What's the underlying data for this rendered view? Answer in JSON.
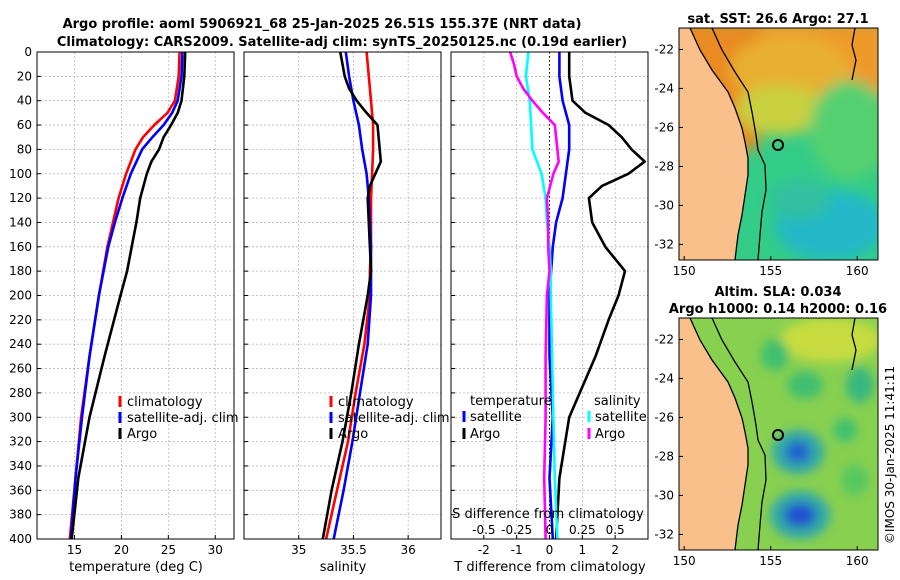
{
  "figure": {
    "title_line1": "Argo profile: aoml 5906921_68 25-Jan-2025 26.51S 155.37E (NRT data)",
    "title_line2": "Climatology: CARS2009. Satellite-adj clim: synTS_20250125.nc (0.19d earlier)",
    "credit": "©IMOS 30-Jan-2025 11:41:11"
  },
  "colors": {
    "climatology": "#ff0000",
    "satellite": "#0000ff",
    "argo": "#000000",
    "sal_satellite": "#00ffff",
    "sal_argo": "#ff00ff",
    "land": "#f9c08b",
    "coast": "#000000",
    "grid": "#b8b8b8"
  },
  "chart_data": [
    {
      "type": "line",
      "panel": "temperature",
      "xlabel": "temperature (deg C)",
      "ylabel": "",
      "xlim": [
        11,
        32
      ],
      "ylim": [
        0,
        400
      ],
      "y_reversed": true,
      "xticks": [
        15,
        20,
        25,
        30
      ],
      "yticks": [
        0,
        20,
        40,
        60,
        80,
        100,
        120,
        140,
        160,
        180,
        200,
        220,
        240,
        260,
        280,
        300,
        320,
        340,
        360,
        380,
        400
      ],
      "legend": [
        "climatology",
        "satellite-adj. clim",
        "Argo"
      ],
      "legend_location": "lower-right",
      "series": [
        {
          "name": "climatology",
          "color": "#ff0000",
          "depth": [
            0,
            20,
            40,
            50,
            60,
            70,
            80,
            100,
            120,
            140,
            160,
            200,
            250,
            300,
            350,
            400
          ],
          "values": [
            26.2,
            26.1,
            25.7,
            24.9,
            23.5,
            22.3,
            21.5,
            20.5,
            19.7,
            19.1,
            18.5,
            17.6,
            16.6,
            15.7,
            15.1,
            14.5
          ]
        },
        {
          "name": "satellite-adj. clim",
          "color": "#0000ff",
          "depth": [
            0,
            20,
            40,
            50,
            60,
            70,
            80,
            100,
            120,
            140,
            160,
            200,
            250,
            300,
            350,
            400
          ],
          "values": [
            26.5,
            26.4,
            26.0,
            25.4,
            24.5,
            23.3,
            22.2,
            21.0,
            20.1,
            19.3,
            18.6,
            17.6,
            16.6,
            15.8,
            15.1,
            14.6
          ]
        },
        {
          "name": "Argo",
          "color": "#000000",
          "depth": [
            0,
            20,
            40,
            50,
            60,
            70,
            80,
            90,
            100,
            120,
            140,
            160,
            180,
            200,
            250,
            300,
            350,
            400
          ],
          "values": [
            26.8,
            26.7,
            26.4,
            26.0,
            25.3,
            24.5,
            24.0,
            23.2,
            22.7,
            22.0,
            21.6,
            21.1,
            20.6,
            19.9,
            18.2,
            16.6,
            15.4,
            14.7
          ]
        }
      ]
    },
    {
      "type": "line",
      "panel": "salinity",
      "xlabel": "salinity",
      "ylabel": "",
      "xlim": [
        34.5,
        36.3
      ],
      "ylim": [
        0,
        400
      ],
      "y_reversed": true,
      "xticks": [
        35,
        35.5,
        36
      ],
      "legend": [
        "climatology",
        "satellite-adj. clim",
        "Argo"
      ],
      "legend_location": "lower-right",
      "series": [
        {
          "name": "climatology",
          "color": "#ff0000",
          "depth": [
            0,
            20,
            40,
            60,
            80,
            100,
            120,
            140,
            160,
            180,
            200,
            240,
            280,
            320,
            360,
            400
          ],
          "values": [
            35.62,
            35.64,
            35.66,
            35.68,
            35.68,
            35.67,
            35.66,
            35.66,
            35.66,
            35.65,
            35.65,
            35.6,
            35.52,
            35.45,
            35.35,
            35.25
          ]
        },
        {
          "name": "satellite-adj. clim",
          "color": "#0000ff",
          "depth": [
            0,
            20,
            40,
            60,
            80,
            100,
            120,
            140,
            160,
            180,
            200,
            240,
            280,
            320,
            360,
            400
          ],
          "values": [
            35.43,
            35.46,
            35.5,
            35.55,
            35.58,
            35.62,
            35.64,
            35.65,
            35.66,
            35.66,
            35.66,
            35.63,
            35.56,
            35.49,
            35.41,
            35.32
          ]
        },
        {
          "name": "Argo",
          "color": "#000000",
          "depth": [
            0,
            10,
            20,
            30,
            40,
            50,
            60,
            70,
            80,
            90,
            100,
            110,
            120,
            140,
            160,
            180,
            200,
            240,
            280,
            320,
            360,
            400
          ],
          "values": [
            35.38,
            35.4,
            35.42,
            35.46,
            35.53,
            35.62,
            35.72,
            35.73,
            35.74,
            35.75,
            35.7,
            35.65,
            35.63,
            35.64,
            35.65,
            35.66,
            35.63,
            35.55,
            35.48,
            35.4,
            35.3,
            35.22
          ]
        }
      ]
    },
    {
      "type": "line",
      "panel": "difference",
      "xlabel": "T difference from climatology",
      "xlabel_top": "S difference from climatology",
      "xlim": [
        -3,
        3
      ],
      "ylim": [
        0,
        400
      ],
      "y_reversed": true,
      "xticks": [
        -2,
        -1,
        0,
        1,
        2
      ],
      "xticks_salinity": [
        -0.5,
        -0.25,
        0,
        0.25,
        0.5
      ],
      "salinity_scale": 4,
      "legend_temperature_title": "temperature",
      "legend_salinity_title": "salinity",
      "legend_temperature": [
        "satellite",
        "Argo"
      ],
      "legend_salinity": [
        "satellite",
        "Argo"
      ],
      "series": [
        {
          "name": "temperature satellite",
          "color": "#0000ff",
          "depth": [
            0,
            20,
            40,
            60,
            80,
            100,
            120,
            140,
            160,
            180,
            200,
            250,
            300,
            350,
            400
          ],
          "values": [
            0.3,
            0.3,
            0.4,
            0.6,
            0.6,
            0.5,
            0.4,
            0.2,
            0.1,
            0.05,
            0.0,
            0.0,
            0.1,
            0.0,
            0.1
          ]
        },
        {
          "name": "temperature Argo",
          "color": "#000000",
          "depth": [
            0,
            20,
            40,
            50,
            60,
            70,
            80,
            90,
            100,
            110,
            120,
            140,
            160,
            180,
            200,
            220,
            250,
            300,
            350,
            400
          ],
          "values": [
            0.6,
            0.6,
            0.7,
            1.1,
            1.8,
            2.2,
            2.5,
            2.9,
            2.4,
            1.6,
            1.2,
            1.3,
            1.7,
            2.3,
            2.1,
            1.8,
            1.4,
            0.6,
            0.3,
            0.2
          ]
        },
        {
          "name": "salinity satellite",
          "color": "#00ffff",
          "depth": [
            0,
            20,
            40,
            60,
            80,
            100,
            120,
            140,
            160,
            180,
            200,
            250,
            300,
            350,
            400
          ],
          "values": [
            -0.16,
            -0.18,
            -0.15,
            -0.14,
            -0.13,
            -0.06,
            -0.03,
            -0.02,
            0.0,
            0.01,
            0.01,
            0.02,
            0.03,
            0.04,
            0.06
          ]
        },
        {
          "name": "salinity Argo",
          "color": "#ff00ff",
          "depth": [
            0,
            10,
            20,
            30,
            40,
            50,
            60,
            70,
            80,
            90,
            100,
            120,
            140,
            160,
            180,
            200,
            250,
            300,
            350,
            400
          ],
          "values": [
            -0.3,
            -0.27,
            -0.25,
            -0.2,
            -0.13,
            -0.05,
            0.04,
            0.05,
            0.06,
            0.07,
            0.03,
            -0.02,
            -0.01,
            -0.01,
            0.0,
            -0.02,
            -0.03,
            -0.03,
            -0.04,
            -0.03
          ]
        }
      ]
    },
    {
      "type": "heatmap",
      "panel": "sst_map",
      "title": "sat. SST: 26.6 Argo: 27.1",
      "xticks": [
        150,
        155,
        160
      ],
      "yticks": [
        -22,
        -24,
        -26,
        -28,
        -30,
        -32
      ],
      "xlim": [
        149.7,
        161.2
      ],
      "ylim": [
        -32.8,
        -20.9
      ],
      "argo_position": [
        155.37,
        -26.51
      ]
    },
    {
      "type": "heatmap",
      "panel": "sla_map",
      "title_line1": "Altim. SLA: 0.034",
      "title_line2": "Argo h1000: 0.14 h2000: 0.16",
      "xticks": [
        150,
        155,
        160
      ],
      "yticks": [
        -22,
        -24,
        -26,
        -28,
        -30,
        -32
      ],
      "xlim": [
        149.7,
        161.2
      ],
      "ylim": [
        -32.8,
        -20.9
      ],
      "argo_position": [
        155.37,
        -26.51
      ]
    }
  ]
}
